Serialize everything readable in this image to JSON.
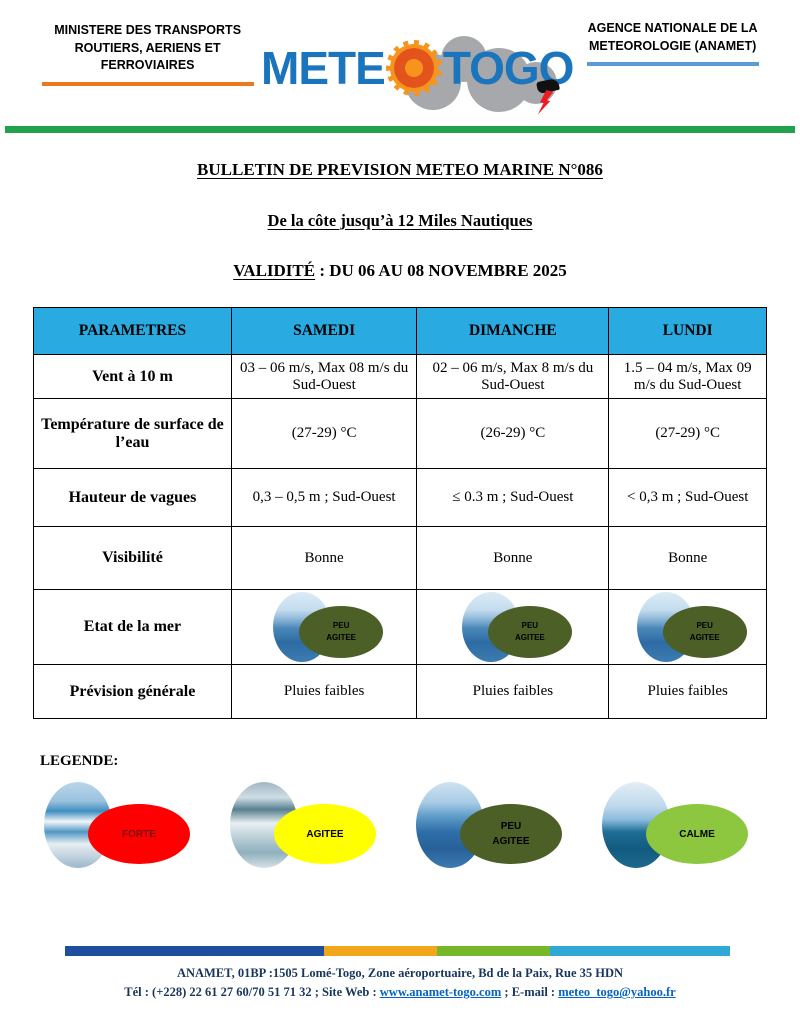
{
  "header": {
    "ministry": {
      "line1": "MINISTERE DES TRANSPORTS",
      "line2": "ROUTIERS, AERIENS ET FERROVIAIRES"
    },
    "agency": {
      "line1": "AGENCE NATIONALE DE LA",
      "line2": "METEOROLOGIE (ANAMET)"
    },
    "logo": {
      "text_left": "METE",
      "text_right": "TOGO"
    }
  },
  "titles": {
    "bulletin": "BULLETIN DE PREVISION METEO MARINE N°086",
    "scope": "De la côte jusqu’à 12 Miles Nautiques",
    "validity_label": "VALIDITÉ",
    "validity_value": " : DU 06 AU 08 NOVEMBRE 2025"
  },
  "table": {
    "headers": [
      "PARAMETRES",
      "SAMEDI",
      "DIMANCHE",
      "LUNDI"
    ],
    "rows": [
      {
        "param": "Vent à 10 m",
        "values": [
          "03 – 06 m/s, Max 08 m/s du Sud-Ouest",
          "02 – 06 m/s, Max 8 m/s du Sud-Ouest",
          "1.5 – 04 m/s, Max 09 m/s du Sud-Ouest"
        ]
      },
      {
        "param": "Température de surface de l’eau",
        "values": [
          "(27-29) °C",
          "(26-29) °C",
          "(27-29) °C"
        ]
      },
      {
        "param": "Hauteur de vagues",
        "values": [
          "0,3 – 0,5 m ; Sud-Ouest",
          "≤ 0.3 m ; Sud-Ouest",
          "< 0,3 m ; Sud-Ouest"
        ]
      },
      {
        "param": "Visibilité",
        "values": [
          "Bonne",
          "Bonne",
          "Bonne"
        ]
      },
      {
        "param": "Etat de la mer",
        "sea_state": {
          "line1": "PEU",
          "line2": "AGITEE",
          "color": "#4B5F27"
        }
      },
      {
        "param": "Prévision générale",
        "values": [
          "Pluies faibles",
          "Pluies faibles",
          "Pluies faibles"
        ]
      }
    ]
  },
  "legend": {
    "label": "LEGENDE:",
    "items": [
      {
        "line1": "FORTE",
        "line2": "",
        "color": "#FE0000"
      },
      {
        "line1": "AGITEE",
        "line2": "",
        "color": "#FFFF00"
      },
      {
        "line1": "PEU",
        "line2": "AGITEE",
        "color": "#4B5F27"
      },
      {
        "line1": "CALME",
        "line2": "",
        "color": "#8DC63F"
      }
    ]
  },
  "footer": {
    "address": "ANAMET, 01BP :1505 Lomé-Togo, Zone aéroportuaire, Bd de la Paix, Rue 35 HDN",
    "tel_label": "Tél : (+228) 22 61 27 60/70 51 71 32 ; Site Web : ",
    "website": "www.anamet-togo.com",
    "email_label": " ; E-mail : ",
    "email": "meteo_togo@yahoo.fr"
  },
  "colors": {
    "table_header_bg": "#29ABE2",
    "divider_green": "#1FA24B",
    "ministry_underline_orange": "#E8791E",
    "agency_underline_blue": "#5B9BD5",
    "logo_blue": "#1B75BC",
    "sun_orange": "#F7941D",
    "cloud_gray": "#A6A8AB",
    "lightning_red": "#ED1C24",
    "footer_text_navy": "#17365D",
    "link_blue": "#0563C1",
    "footer_bar": [
      "#1F4E9E",
      "#F2A71B",
      "#76B82A",
      "#2FA8D5"
    ]
  }
}
